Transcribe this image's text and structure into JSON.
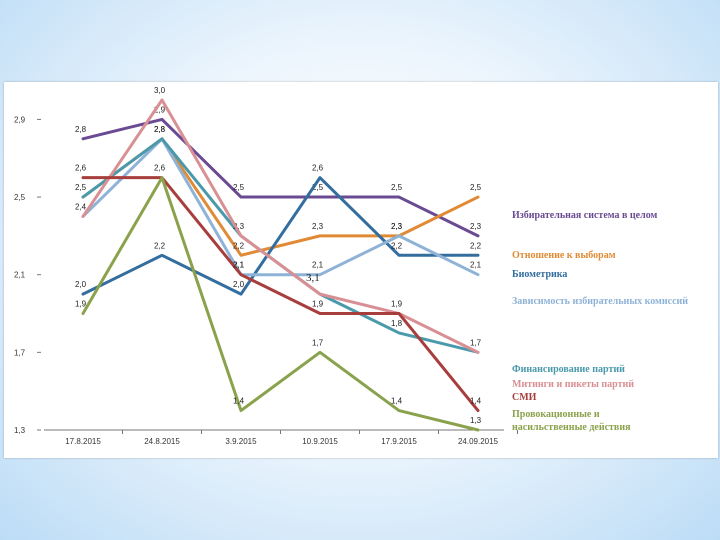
{
  "chart_data": {
    "type": "line",
    "x": [
      "17.8.2015",
      "24.8.2015",
      "3.9.2015",
      "10.9.2015",
      "17.9.2015",
      "24.09.2015"
    ],
    "yticks": [
      "1,3",
      "1,7",
      "2,1",
      "2,5",
      "2,9"
    ],
    "ylim": [
      1.3,
      3.0
    ],
    "grid": false,
    "legend_position": "right",
    "annotation": "3,1",
    "series": [
      {
        "name": "Избирательная система в целом",
        "color": "#6a4a92",
        "values": [
          2.8,
          2.9,
          2.5,
          2.5,
          2.5,
          2.3
        ],
        "labels": [
          "2,8",
          "2,9",
          "2,5",
          "2,5",
          "2,5",
          "2,3"
        ]
      },
      {
        "name": "Отношение к выборам",
        "color": "#e08a35",
        "values": [
          2.5,
          2.8,
          2.2,
          2.3,
          2.3,
          2.5
        ],
        "labels": [
          "2,5",
          "2,8",
          "2,2",
          "2,3",
          "2,3",
          "2,5"
        ]
      },
      {
        "name": "Биометрика",
        "color": "#336e9e",
        "values": [
          2.0,
          2.2,
          2.0,
          2.6,
          2.2,
          2.2
        ],
        "labels": [
          "2,0",
          "2,2",
          "2,0",
          "2,6",
          "2,2",
          "2,2"
        ]
      },
      {
        "name": "Зависимость избирательных комиссий",
        "color": "#8fb3d7",
        "values": [
          2.4,
          2.8,
          2.1,
          2.1,
          2.3,
          2.1
        ],
        "labels": [
          "2,4",
          "2,8",
          "2,1",
          "2,1",
          "2,3",
          "2,1"
        ]
      },
      {
        "name": "Финансирование партий",
        "color": "#4a9aab",
        "values": [
          2.5,
          2.8,
          2.3,
          2.0,
          1.8,
          1.7
        ],
        "labels": [
          "",
          "",
          "2,3",
          "",
          "1,8",
          "1,7"
        ]
      },
      {
        "name": "Митинги и пикеты партий",
        "color": "#d99094",
        "values": [
          2.4,
          3.0,
          2.3,
          2.0,
          1.9,
          1.7
        ],
        "labels": [
          "",
          "3,0",
          "",
          "",
          "",
          ""
        ]
      },
      {
        "name": "СМИ",
        "color": "#a83e3c",
        "values": [
          2.6,
          2.6,
          2.1,
          1.9,
          1.9,
          1.4
        ],
        "labels": [
          "2,6",
          "2,6",
          "2,1",
          "1,9",
          "1,9",
          "1,4"
        ]
      },
      {
        "name": "Провокационные и насильственные действия",
        "color": "#8aa24c",
        "values": [
          1.9,
          2.6,
          1.4,
          1.7,
          1.4,
          1.3
        ],
        "labels": [
          "1,9",
          "",
          "1,4",
          "1,7",
          "1,4",
          "1,3"
        ]
      }
    ]
  }
}
